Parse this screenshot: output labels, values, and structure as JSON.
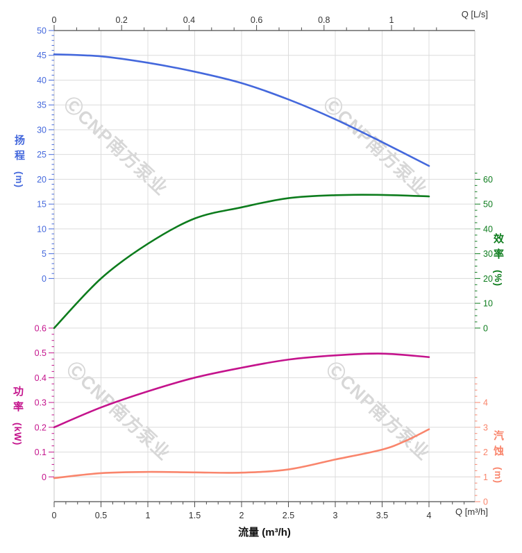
{
  "watermark": {
    "text": "ⒸCNP南方泵业",
    "color": "#d5d5d5"
  },
  "chart_data": {
    "type": "line",
    "description": "Pump performance curves: head, efficiency, power, NPSH vs flow",
    "grid": true,
    "x_axis_bottom": {
      "label": "Q [m³/h]",
      "title": "流量 (m³/h)",
      "range": [
        0,
        4.49
      ],
      "ticks": [
        0,
        0.5,
        1,
        1.5,
        2,
        2.5,
        3,
        3.5,
        4
      ]
    },
    "x_axis_top": {
      "label": "Q [L/s]",
      "range": [
        0,
        1.25
      ],
      "ticks": [
        0,
        0.2,
        0.4,
        0.6,
        0.8,
        1
      ]
    },
    "axes": {
      "top": {
        "label": "Q [L/s]",
        "ticks": [
          0,
          0.2,
          0.4,
          0.6,
          0.8,
          1
        ],
        "color": "#333333"
      },
      "bottom": {
        "label": "Q [m³/h]",
        "title": "流量 (m³/h)",
        "ticks": [
          0,
          0.5,
          1,
          1.5,
          2,
          2.5,
          3,
          3.5,
          4
        ],
        "color": "#333333"
      },
      "head": {
        "title": "扬程",
        "unit": "(m)",
        "ticks": [
          50,
          45,
          40,
          35,
          30,
          25,
          20,
          15,
          10,
          5,
          0
        ],
        "color": "#4468dc"
      },
      "efficiency": {
        "title": "效率",
        "unit": "(%)",
        "ticks": [
          60,
          50,
          40,
          30,
          20,
          10,
          0
        ],
        "color": "#0d7c1d"
      },
      "power": {
        "title": "功率",
        "unit": "(kW)",
        "ticks": [
          0.6,
          0.5,
          0.4,
          0.3,
          0.2,
          0.1,
          0
        ],
        "color": "#c4138c"
      },
      "npsh": {
        "title": "汽蚀",
        "unit": "(m)",
        "ticks": [
          4,
          3,
          2,
          1,
          0
        ],
        "color": "#f9856c"
      }
    },
    "series": [
      {
        "id": "head",
        "name": "扬程",
        "unit": "m",
        "color": "#4468dc",
        "points": [
          [
            0,
            45.2
          ],
          [
            0.5,
            44.8
          ],
          [
            1,
            43.5
          ],
          [
            1.5,
            41.7
          ],
          [
            2,
            39.4
          ],
          [
            2.5,
            36.1
          ],
          [
            3,
            32.1
          ],
          [
            3.5,
            27.5
          ],
          [
            4,
            22.7
          ]
        ]
      },
      {
        "id": "efficiency",
        "name": "效率",
        "unit": "%",
        "color": "#0d7c1d",
        "points": [
          [
            0,
            0
          ],
          [
            0.5,
            20
          ],
          [
            1,
            34
          ],
          [
            1.5,
            44.2
          ],
          [
            2,
            48.7
          ],
          [
            2.5,
            52.4
          ],
          [
            3,
            53.6
          ],
          [
            3.5,
            53.7
          ],
          [
            4,
            53.1
          ]
        ]
      },
      {
        "id": "power",
        "name": "功率",
        "unit": "kW",
        "color": "#c4138c",
        "points": [
          [
            0,
            0.2
          ],
          [
            0.5,
            0.28
          ],
          [
            1,
            0.345
          ],
          [
            1.5,
            0.4
          ],
          [
            2,
            0.44
          ],
          [
            2.5,
            0.473
          ],
          [
            3,
            0.49
          ],
          [
            3.5,
            0.497
          ],
          [
            4,
            0.483
          ]
        ]
      },
      {
        "id": "npsh",
        "name": "汽蚀",
        "unit": "m",
        "color": "#f9856c",
        "points": [
          [
            0,
            0.95
          ],
          [
            0.5,
            1.15
          ],
          [
            1,
            1.2
          ],
          [
            1.5,
            1.18
          ],
          [
            2,
            1.17
          ],
          [
            2.5,
            1.3
          ],
          [
            3,
            1.7
          ],
          [
            3.5,
            2.1
          ],
          [
            3.75,
            2.45
          ],
          [
            4,
            2.92
          ]
        ]
      }
    ],
    "style": {
      "grid_color": "#dcdcdc",
      "border_color": "#c9c9c9",
      "axis_line_color": "#4c4c4c",
      "tick_label_color": "#333333"
    }
  }
}
